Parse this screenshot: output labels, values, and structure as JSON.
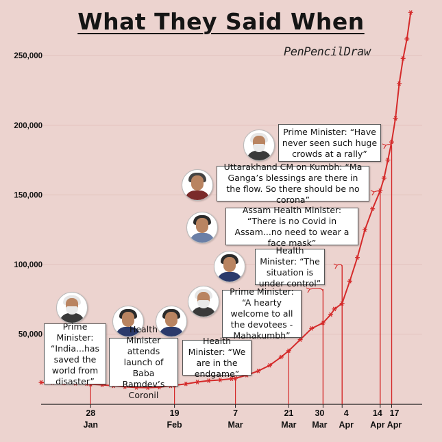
{
  "title": "What They Said When",
  "credit": "PenPencilDraw",
  "colors": {
    "background": "#ecd3cf",
    "line": "#d42a2a",
    "grid": "#e2c2bd"
  },
  "chart_data": {
    "type": "line",
    "ylim": [
      0,
      290000
    ],
    "yticks": [
      50000,
      100000,
      150000,
      200000,
      250000
    ],
    "ytick_labels": [
      "50,000",
      "100,000",
      "150,000",
      "200,000",
      "250,000"
    ],
    "xlim": [
      "2021-01-15",
      "2021-04-25"
    ],
    "xticks": [
      {
        "date": "2021-01-28",
        "day": "28",
        "month": "Jan"
      },
      {
        "date": "2021-02-19",
        "day": "19",
        "month": "Feb"
      },
      {
        "date": "2021-03-07",
        "day": "7",
        "month": "Mar"
      },
      {
        "date": "2021-03-21",
        "day": "21",
        "month": "Mar"
      },
      {
        "date": "2021-03-30",
        "day": "30",
        "month": "Mar"
      },
      {
        "date": "2021-04-04",
        "day": "4",
        "month": "Apr"
      },
      {
        "date": "2021-04-14",
        "day": "14",
        "month": "Apr"
      },
      {
        "date": "2021-04-17",
        "day": "17",
        "month": "Apr"
      }
    ],
    "series": [
      {
        "points": [
          [
            "2021-01-15",
            15200
          ],
          [
            "2021-01-18",
            15000
          ],
          [
            "2021-01-21",
            14800
          ],
          [
            "2021-01-24",
            14600
          ],
          [
            "2021-01-27",
            14300
          ],
          [
            "2021-01-28",
            14000
          ],
          [
            "2021-01-31",
            13500
          ],
          [
            "2021-02-03",
            12800
          ],
          [
            "2021-02-06",
            12100
          ],
          [
            "2021-02-09",
            11600
          ],
          [
            "2021-02-12",
            11400
          ],
          [
            "2021-02-15",
            11800
          ],
          [
            "2021-02-18",
            12800
          ],
          [
            "2021-02-19",
            13200
          ],
          [
            "2021-02-22",
            14200
          ],
          [
            "2021-02-25",
            15500
          ],
          [
            "2021-02-28",
            16500
          ],
          [
            "2021-03-03",
            17000
          ],
          [
            "2021-03-06",
            17800
          ],
          [
            "2021-03-07",
            18200
          ],
          [
            "2021-03-10",
            20500
          ],
          [
            "2021-03-13",
            23500
          ],
          [
            "2021-03-16",
            27500
          ],
          [
            "2021-03-19",
            33500
          ],
          [
            "2021-03-21",
            38000
          ],
          [
            "2021-03-24",
            46000
          ],
          [
            "2021-03-27",
            54000
          ],
          [
            "2021-03-30",
            58000
          ],
          [
            "2021-04-01",
            64000
          ],
          [
            "2021-04-02",
            68000
          ],
          [
            "2021-04-04",
            72000
          ],
          [
            "2021-04-06",
            88000
          ],
          [
            "2021-04-08",
            105000
          ],
          [
            "2021-04-10",
            125000
          ],
          [
            "2021-04-12",
            140000
          ],
          [
            "2021-04-14",
            153000
          ],
          [
            "2021-04-15",
            162000
          ],
          [
            "2021-04-16",
            175000
          ],
          [
            "2021-04-17",
            188000
          ],
          [
            "2021-04-18",
            205000
          ],
          [
            "2021-04-19",
            230000
          ],
          [
            "2021-04-20",
            248000
          ],
          [
            "2021-04-21",
            262000
          ],
          [
            "2021-04-22",
            281000
          ]
        ]
      }
    ],
    "annotations": [
      {
        "date": "2021-01-28",
        "value": 14000,
        "text": "Prime Minister: “India...has saved the world from disaster”"
      },
      {
        "date": "2021-02-19",
        "value": 13200,
        "text": "Health Minister attends launch of Baba Ramdev’s Coronil"
      },
      {
        "date": "2021-03-07",
        "value": 18200,
        "text": "Health Minister: “We are in the endgame”"
      },
      {
        "date": "2021-03-21",
        "value": 38000,
        "text": "Prime Minister: “A hearty welcome to all the devotees - Mahakumbh”"
      },
      {
        "date": "2021-03-30",
        "value": 58000,
        "text": "Health Minister: “The situation is under control”"
      },
      {
        "date": "2021-04-04",
        "value": 72000,
        "text": "Assam Health Minister: “There is no Covid in Assam...no need to wear a face mask”"
      },
      {
        "date": "2021-04-14",
        "value": 153000,
        "text": "Uttarakhand CM on Kumbh: “Ma Ganga’s blessings are there in the flow. So there should be no corona”"
      },
      {
        "date": "2021-04-17",
        "value": 188000,
        "text": "Prime Minister: “Have never seen such huge crowds at a rally”"
      }
    ]
  },
  "portraits": [
    {
      "name": "prime-minister",
      "hair": "#e6e6e6",
      "beard": true,
      "body": "#3a3a3a"
    },
    {
      "name": "health-minister",
      "hair": "#2a2a2a",
      "beard": false,
      "body": "#2b3a6b"
    },
    {
      "name": "health-minister",
      "hair": "#2a2a2a",
      "beard": false,
      "body": "#2b3a6b"
    },
    {
      "name": "prime-minister",
      "hair": "#e6e6e6",
      "beard": true,
      "body": "#3a3a3a"
    },
    {
      "name": "health-minister",
      "hair": "#2a2a2a",
      "beard": false,
      "body": "#2b3a6b"
    },
    {
      "name": "assam-health-minister",
      "hair": "#2a2a2a",
      "beard": false,
      "body": "#6b7fa6"
    },
    {
      "name": "uttarakhand-cm",
      "hair": "#444444",
      "beard": false,
      "body": "#7a2b2b"
    },
    {
      "name": "prime-minister",
      "hair": "#e6e6e6",
      "beard": true,
      "body": "#3a3a3a"
    }
  ]
}
